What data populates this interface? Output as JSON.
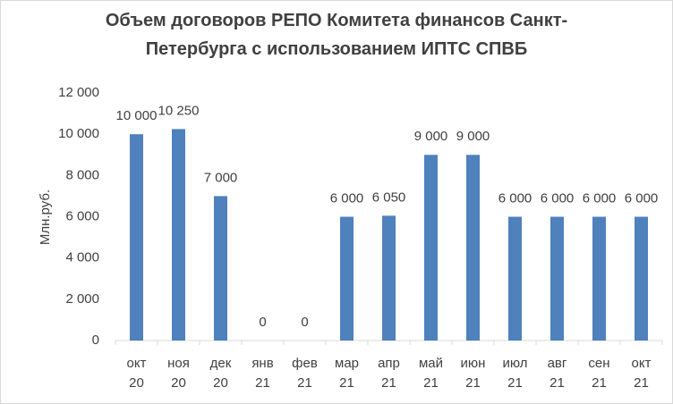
{
  "chart_data": {
    "type": "bar",
    "title": "Объем договоров  РЕПО Комитета финансов Санкт-Петербурга с использованием ИПТС СПВБ",
    "y_label": "Млн.руб.",
    "categories": [
      "окт 20",
      "ноя 20",
      "дек 20",
      "янв 21",
      "фев 21",
      "мар 21",
      "апр 21",
      "май 21",
      "июн 21",
      "июл 21",
      "авг 21",
      "сен 21",
      "окт 21"
    ],
    "values": [
      10000,
      10250,
      7000,
      0,
      0,
      6000,
      6050,
      9000,
      9000,
      6000,
      6000,
      6000,
      6000
    ],
    "value_labels": [
      "10 000",
      "10 250",
      "7 000",
      "0",
      "0",
      "6 000",
      "6 050",
      "9 000",
      "9 000",
      "6 000",
      "6 000",
      "6 000",
      "6 000"
    ],
    "color": "#4f81bd",
    "ylim": [
      0,
      12000
    ],
    "yticks": [
      0,
      {
        "value": 2000,
        "label": "2 000"
      },
      {
        "value": 4000,
        "label": "4 000"
      },
      {
        "value": 6000,
        "label": "6 000"
      },
      {
        "value": 8000,
        "label": "8 000"
      },
      {
        "value": 10000,
        "label": "10 000"
      },
      {
        "value": 12000,
        "label": "12 000"
      }
    ],
    "grid": false
  }
}
